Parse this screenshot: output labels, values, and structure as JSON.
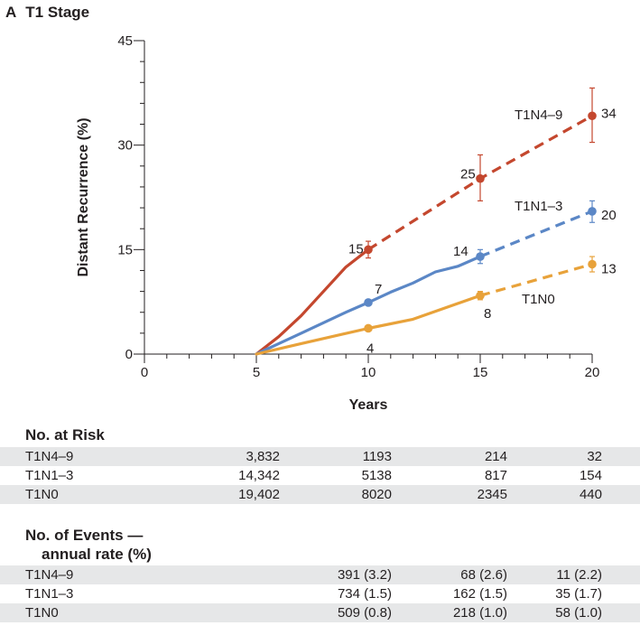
{
  "panel": {
    "letter": "A",
    "title": "T1 Stage"
  },
  "colors": {
    "T1N4-9": "#c4472e",
    "T1N1-3": "#5b87c6",
    "T1N0": "#e8a23a",
    "axis": "#231f20",
    "shade": "#e6e7e8"
  },
  "chart_data": {
    "type": "line",
    "xlabel": "Years",
    "ylabel": "Distant Recurrence (%)",
    "xlim": [
      0,
      20
    ],
    "ylim": [
      0,
      45
    ],
    "xticks": [
      0,
      5,
      10,
      15,
      20
    ],
    "yticks": [
      0,
      15,
      30,
      45
    ],
    "series": [
      {
        "name": "T1N4-9",
        "label": "T1N4–9",
        "color": "#c4472e",
        "solid": [
          [
            5,
            0
          ],
          [
            6,
            2.5
          ],
          [
            7,
            5.5
          ],
          [
            8,
            9
          ],
          [
            9,
            12.5
          ],
          [
            10,
            15
          ]
        ],
        "dashed": [
          [
            10,
            15
          ],
          [
            15,
            25.2
          ],
          [
            20,
            34.2
          ]
        ],
        "points": [
          {
            "x": 10,
            "y": 15,
            "label": "15",
            "err": [
              13.8,
              16.2
            ]
          },
          {
            "x": 15,
            "y": 25.2,
            "label": "25",
            "err": [
              22,
              28.6
            ]
          },
          {
            "x": 20,
            "y": 34.2,
            "label": "34",
            "err": [
              30.4,
              38.2
            ]
          }
        ]
      },
      {
        "name": "T1N1-3",
        "label": "T1N1–3",
        "color": "#5b87c6",
        "solid": [
          [
            5,
            0
          ],
          [
            6,
            1.5
          ],
          [
            7,
            3
          ],
          [
            8,
            4.5
          ],
          [
            9,
            6
          ],
          [
            10,
            7.4
          ],
          [
            11,
            8.9
          ],
          [
            12,
            10.2
          ],
          [
            13,
            11.8
          ],
          [
            14,
            12.6
          ],
          [
            15,
            14
          ]
        ],
        "dashed": [
          [
            15,
            14
          ],
          [
            20,
            20.5
          ]
        ],
        "points": [
          {
            "x": 10,
            "y": 7.4,
            "label": "7",
            "err": null
          },
          {
            "x": 15,
            "y": 14,
            "label": "14",
            "err": [
              13,
              15
            ]
          },
          {
            "x": 20,
            "y": 20.5,
            "label": "20",
            "err": [
              18.9,
              22
            ]
          }
        ]
      },
      {
        "name": "T1N0",
        "label": "T1N0",
        "color": "#e8a23a",
        "solid": [
          [
            5,
            0
          ],
          [
            7,
            1.5
          ],
          [
            10,
            3.7
          ],
          [
            12,
            5
          ],
          [
            15,
            8.4
          ]
        ],
        "dashed": [
          [
            15,
            8.4
          ],
          [
            20,
            12.9
          ]
        ],
        "points": [
          {
            "x": 10,
            "y": 3.7,
            "label": "4",
            "err": null
          },
          {
            "x": 15,
            "y": 8.4,
            "label": "8",
            "err": [
              7.8,
              9
            ]
          },
          {
            "x": 20,
            "y": 12.9,
            "label": "13",
            "err": [
              11.8,
              14
            ]
          }
        ]
      }
    ]
  },
  "risk_table": {
    "header": "No. at Risk",
    "rows": [
      {
        "label": "T1N4–9",
        "values": [
          "3,832",
          "1193",
          "214",
          "32"
        ]
      },
      {
        "label": "T1N1–3",
        "values": [
          "14,342",
          "5138",
          "817",
          "154"
        ]
      },
      {
        "label": "T1N0",
        "values": [
          "19,402",
          "8020",
          "2345",
          "440"
        ]
      }
    ]
  },
  "events_table": {
    "header_line1": "No. of Events —",
    "header_line2": "annual rate (%)",
    "rows": [
      {
        "label": "T1N4–9",
        "values": [
          "",
          "391 (3.2)",
          "68 (2.6)",
          "11 (2.2)"
        ]
      },
      {
        "label": "T1N1–3",
        "values": [
          "",
          "734 (1.5)",
          "162 (1.5)",
          "35 (1.7)"
        ]
      },
      {
        "label": "T1N0",
        "values": [
          "",
          "509 (0.8)",
          "218 (1.0)",
          "58 (1.0)"
        ]
      }
    ]
  }
}
